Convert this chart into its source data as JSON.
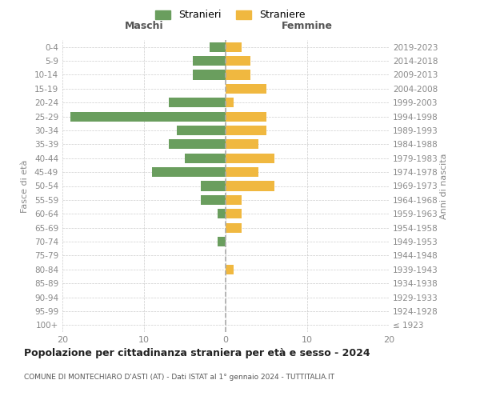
{
  "age_groups": [
    "0-4",
    "5-9",
    "10-14",
    "15-19",
    "20-24",
    "25-29",
    "30-34",
    "35-39",
    "40-44",
    "45-49",
    "50-54",
    "55-59",
    "60-64",
    "65-69",
    "70-74",
    "75-79",
    "80-84",
    "85-89",
    "90-94",
    "95-99",
    "100+"
  ],
  "birth_years": [
    "2019-2023",
    "2014-2018",
    "2009-2013",
    "2004-2008",
    "1999-2003",
    "1994-1998",
    "1989-1993",
    "1984-1988",
    "1979-1983",
    "1974-1978",
    "1969-1973",
    "1964-1968",
    "1959-1963",
    "1954-1958",
    "1949-1953",
    "1944-1948",
    "1939-1943",
    "1934-1938",
    "1929-1933",
    "1924-1928",
    "≤ 1923"
  ],
  "maschi": [
    2,
    4,
    4,
    0,
    7,
    19,
    6,
    7,
    5,
    9,
    3,
    3,
    1,
    0,
    1,
    0,
    0,
    0,
    0,
    0,
    0
  ],
  "femmine": [
    2,
    3,
    3,
    5,
    1,
    5,
    5,
    4,
    6,
    4,
    6,
    2,
    2,
    2,
    0,
    0,
    1,
    0,
    0,
    0,
    0
  ],
  "maschi_color": "#6a9e5e",
  "femmine_color": "#f0b840",
  "legend_maschi_label": "Stranieri",
  "legend_femmine_label": "Straniere",
  "title": "Popolazione per cittadinanza straniera per età e sesso - 2024",
  "subtitle": "COMUNE DI MONTECHIARO D'ASTI (AT) - Dati ISTAT al 1° gennaio 2024 - TUTTITALIA.IT",
  "ylabel_left": "Fasce di età",
  "ylabel_right": "Anni di nascita",
  "xlabel_left": "Maschi",
  "xlabel_right": "Femmine",
  "xlim": 20,
  "background_color": "#ffffff",
  "grid_color": "#cccccc"
}
